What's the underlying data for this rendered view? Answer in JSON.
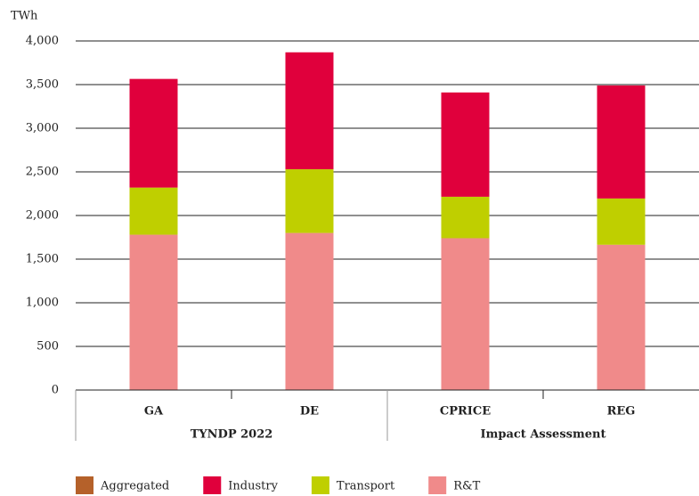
{
  "chart_data": {
    "type": "stacked_bar",
    "yaxis_label": "TWh",
    "categories": [
      "GA",
      "DE",
      "CPRICE",
      "REG"
    ],
    "groups": [
      {
        "label": "TYNDP 2022",
        "span": 2
      },
      {
        "label": "Impact Assessment",
        "span": 2
      }
    ],
    "series": [
      {
        "name": "Aggregated",
        "color": "#b5612a",
        "values": [
          0,
          0,
          0,
          0
        ]
      },
      {
        "name": "Industry",
        "color": "#e0003c",
        "values": [
          1245,
          1340,
          1195,
          1295
        ]
      },
      {
        "name": "Transport",
        "color": "#bfcf00",
        "values": [
          540,
          730,
          475,
          530
        ]
      },
      {
        "name": "R&T",
        "color": "#f08a8a",
        "values": [
          1780,
          1800,
          1740,
          1665
        ]
      }
    ],
    "stack_order": [
      3,
      2,
      1,
      0
    ],
    "ylim": [
      0,
      4000
    ],
    "yticks": [
      0,
      500,
      {
        "value": 1000,
        "label": "1,000"
      },
      {
        "value": 1500,
        "label": "1,500"
      },
      {
        "value": 2000,
        "label": "2,000"
      },
      {
        "value": 2500,
        "label": "2,500"
      },
      {
        "value": 3000,
        "label": "3,000"
      },
      {
        "value": 3500,
        "label": "3,500"
      },
      {
        "value": 4000,
        "label": "4,000"
      }
    ],
    "grid": true,
    "legend": "bottom"
  }
}
